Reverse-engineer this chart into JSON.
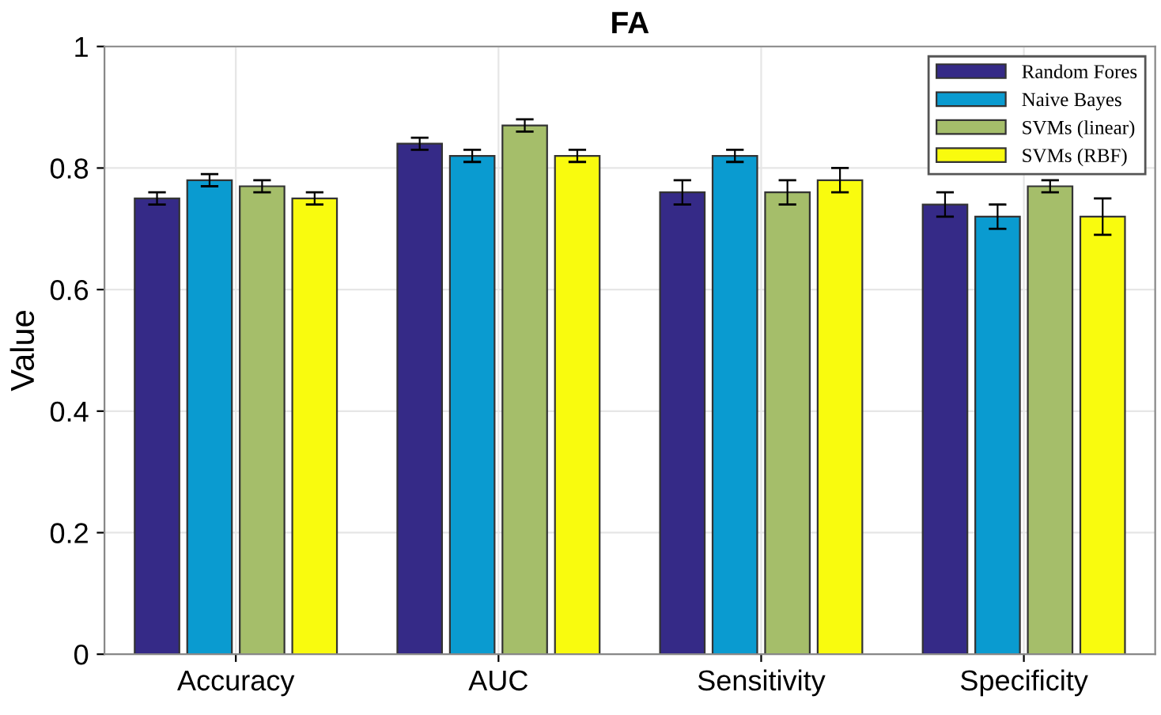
{
  "chart_data": {
    "type": "bar",
    "title": "FA",
    "ylabel": "Value",
    "categories": [
      "Accuracy",
      "AUC",
      "Sensitivity",
      "Specificity"
    ],
    "series": [
      {
        "name": "Random Fores",
        "color": "#352a87",
        "values": [
          0.75,
          0.84,
          0.76,
          0.74
        ],
        "errors": [
          0.01,
          0.01,
          0.02,
          0.02
        ]
      },
      {
        "name": "Naive Bayes",
        "color": "#0a9bd0",
        "values": [
          0.78,
          0.82,
          0.82,
          0.72
        ],
        "errors": [
          0.01,
          0.01,
          0.01,
          0.02
        ]
      },
      {
        "name": "SVMs (linear)",
        "color": "#a5be6a",
        "values": [
          0.77,
          0.87,
          0.76,
          0.77
        ],
        "errors": [
          0.01,
          0.01,
          0.02,
          0.01
        ]
      },
      {
        "name": "SVMs (RBF)",
        "color": "#f9fb0e",
        "values": [
          0.75,
          0.82,
          0.78,
          0.72
        ],
        "errors": [
          0.01,
          0.01,
          0.02,
          0.03
        ]
      }
    ],
    "ylim": [
      0,
      1
    ],
    "yticks": [
      0,
      0.2,
      0.4,
      0.6,
      0.8,
      1
    ],
    "grid": true,
    "legend": "top right"
  }
}
